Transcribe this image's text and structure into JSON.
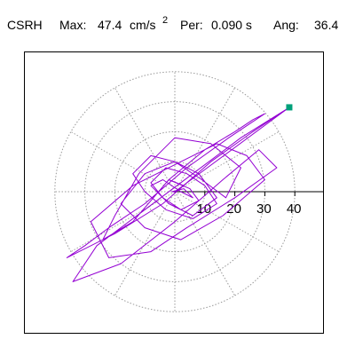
{
  "header": {
    "station": "CSRH",
    "max_label": "Max:",
    "max_value": "47.4",
    "max_unit": "cm/s",
    "max_unit_exp": "2",
    "per_label": "Per:",
    "per_value": "0.090 s",
    "ang_label": "Ang:",
    "ang_value": "36.4"
  },
  "colors": {
    "trace": "#9400d3",
    "marker": "#00a07a",
    "grid": "#999999",
    "axis": "#000000"
  },
  "chart_data": {
    "type": "polar-orbit",
    "title": "",
    "radial_ticks": [
      "10",
      "20",
      "30",
      "40"
    ],
    "radial_tick_values": [
      10,
      20,
      30,
      40
    ],
    "radial_max": 40,
    "angular_grid_step_deg": 30,
    "grid": true,
    "peak": {
      "magnitude": 47.4,
      "angle_deg": 36.4
    },
    "series": [
      {
        "x": [
          0,
          3,
          -2,
          5,
          8,
          2,
          -4,
          -8,
          -3,
          4,
          10,
          14,
          6,
          -3,
          -10,
          -14,
          -8,
          0,
          9,
          17,
          22,
          12,
          0,
          -12,
          -20,
          -24,
          -14,
          -2,
          10,
          20,
          26,
          30,
          18,
          4,
          -10,
          -22,
          -30,
          -36,
          -20,
          -4,
          12,
          26,
          38,
          22,
          6,
          -10,
          -26,
          -34,
          -18,
          0,
          16,
          28,
          34,
          20,
          4,
          -8,
          -22,
          -28,
          -14,
          2,
          14,
          24,
          30,
          16,
          2,
          -10,
          -18,
          -10,
          0,
          8,
          14,
          6,
          -2,
          -8,
          -4,
          2,
          6,
          3,
          -1,
          0
        ],
        "y": [
          0,
          2,
          4,
          1,
          -3,
          -6,
          -2,
          3,
          8,
          6,
          2,
          -4,
          -9,
          -6,
          0,
          6,
          12,
          10,
          4,
          -2,
          8,
          16,
          18,
          6,
          -8,
          -16,
          -10,
          4,
          14,
          20,
          24,
          26,
          18,
          8,
          -4,
          -12,
          -18,
          -22,
          -14,
          -4,
          10,
          20,
          28,
          18,
          6,
          -6,
          -18,
          -30,
          -24,
          -10,
          4,
          14,
          8,
          -2,
          -12,
          -20,
          -22,
          -10,
          2,
          10,
          16,
          12,
          4,
          -8,
          -16,
          -12,
          -4,
          6,
          10,
          6,
          -2,
          -8,
          -4,
          2,
          4,
          0,
          -2,
          1,
          0,
          0
        ]
      }
    ]
  }
}
